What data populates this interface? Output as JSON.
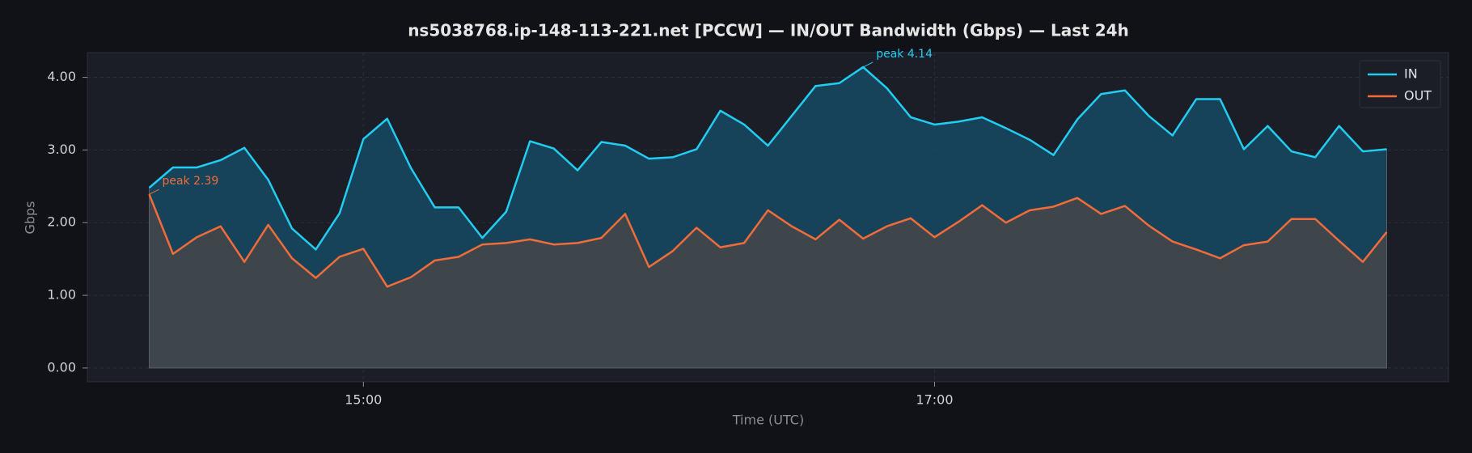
{
  "chart_data": {
    "type": "line",
    "title": "ns5038768.ip-148-113-221.net [PCCW] — IN/OUT Bandwidth (Gbps) — Last 24h",
    "x_label": "Time (UTC)",
    "y_label": "Gbps",
    "x": [
      "14:15",
      "14:20",
      "14:25",
      "14:30",
      "14:35",
      "14:40",
      "14:45",
      "14:50",
      "14:55",
      "15:00",
      "15:05",
      "15:10",
      "15:15",
      "15:20",
      "15:25",
      "15:30",
      "15:35",
      "15:40",
      "15:45",
      "15:50",
      "15:55",
      "16:00",
      "16:05",
      "16:10",
      "16:15",
      "16:20",
      "16:25",
      "16:30",
      "16:35",
      "16:40",
      "16:45",
      "16:50",
      "16:55",
      "17:00",
      "17:05",
      "17:10",
      "17:15",
      "17:20",
      "17:25",
      "17:30",
      "17:35",
      "17:40",
      "17:45",
      "17:50",
      "17:55",
      "18:00",
      "18:05",
      "18:10",
      "18:15",
      "18:20",
      "18:25",
      "18:30",
      "18:35"
    ],
    "series": [
      {
        "name": "IN",
        "color": "#22cdf2",
        "fill": "#154a63",
        "values": [
          2.48,
          2.76,
          2.76,
          2.86,
          3.03,
          2.59,
          1.92,
          1.63,
          2.13,
          3.15,
          3.43,
          2.75,
          2.21,
          2.21,
          1.79,
          2.15,
          3.12,
          3.02,
          2.72,
          3.11,
          3.06,
          2.88,
          2.9,
          3.01,
          3.54,
          3.35,
          3.06,
          3.47,
          3.88,
          3.92,
          4.14,
          3.85,
          3.45,
          3.35,
          3.39,
          3.45,
          3.3,
          3.14,
          2.93,
          3.42,
          3.77,
          3.82,
          3.47,
          3.2,
          3.7,
          3.7,
          3.01,
          3.33,
          2.98,
          2.9,
          3.33,
          2.98,
          3.01
        ]
      },
      {
        "name": "OUT",
        "color": "#f26b3a",
        "fill": "#45464a",
        "values": [
          2.39,
          1.57,
          1.8,
          1.95,
          1.46,
          1.97,
          1.51,
          1.24,
          1.53,
          1.64,
          1.12,
          1.25,
          1.48,
          1.53,
          1.7,
          1.72,
          1.77,
          1.7,
          1.72,
          1.79,
          2.12,
          1.39,
          1.61,
          1.93,
          1.66,
          1.72,
          2.17,
          1.95,
          1.77,
          2.04,
          1.78,
          1.95,
          2.06,
          1.8,
          2.01,
          2.24,
          2.0,
          2.17,
          2.22,
          2.34,
          2.12,
          2.23,
          1.96,
          1.74,
          1.63,
          1.51,
          1.69,
          1.74,
          2.05,
          2.05,
          1.75,
          1.46,
          1.87
        ]
      }
    ],
    "annotations": [
      {
        "text": "peak 4.14",
        "x": "16:45",
        "y": 4.14,
        "color": "#22cdf2"
      },
      {
        "text": "peak 2.39",
        "x": "14:15",
        "y": 2.39,
        "color": "#f26b3a"
      }
    ],
    "xlim": [
      "14:02",
      "18:48"
    ],
    "xticks": [
      "15:00",
      "17:00"
    ],
    "ylim": [
      -0.19,
      4.34
    ],
    "yticks": [
      {
        "value": 0,
        "label": "0.00"
      },
      {
        "value": 1,
        "label": "1.00"
      },
      {
        "value": 2,
        "label": "2.00"
      },
      {
        "value": 3,
        "label": "3.00"
      },
      {
        "value": 4,
        "label": "4.00"
      }
    ],
    "grid": true,
    "legend": "upper right"
  }
}
